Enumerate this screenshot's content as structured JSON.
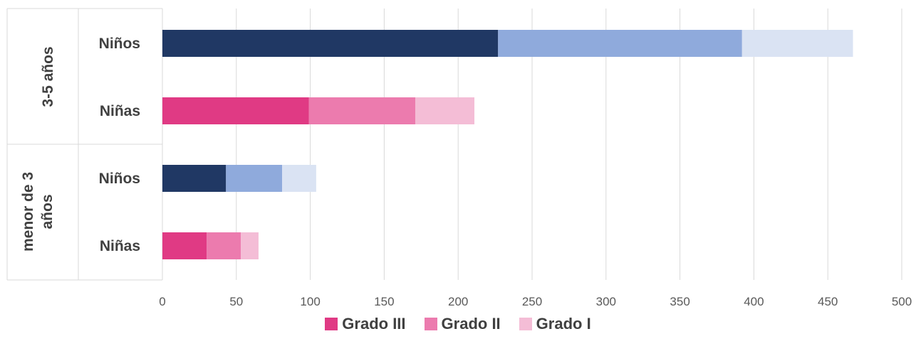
{
  "chart_data": {
    "type": "bar",
    "orientation": "horizontal",
    "stacked": true,
    "groups": [
      {
        "label": "3-5 años",
        "categories": [
          "Niños",
          "Niñas"
        ]
      },
      {
        "label": "menor de 3 años",
        "label_lines": [
          "menor de 3",
          "años"
        ],
        "categories": [
          "Niños",
          "Niñas"
        ]
      }
    ],
    "categories": [
      "3-5 años / Niños",
      "3-5 años / Niñas",
      "menor de 3 años / Niños",
      "menor de 3 años / Niñas"
    ],
    "category_labels": [
      "Niños",
      "Niñas",
      "Niños",
      "Niñas"
    ],
    "series": [
      {
        "name": "Grado III",
        "values": [
          227,
          99,
          43,
          30
        ]
      },
      {
        "name": "Grado II",
        "values": [
          165,
          72,
          38,
          23
        ]
      },
      {
        "name": "Grado I",
        "values": [
          75,
          40,
          23,
          12
        ]
      }
    ],
    "bar_colors": [
      [
        "#203864",
        "#8FAADC",
        "#DAE3F3"
      ],
      [
        "#E03A84",
        "#EC7BAE",
        "#F4BDD6"
      ],
      [
        "#203864",
        "#8FAADC",
        "#DAE3F3"
      ],
      [
        "#E03A84",
        "#EC7BAE",
        "#F4BDD6"
      ]
    ],
    "legend_colors": [
      "#E03A84",
      "#EC7BAE",
      "#F4BDD6"
    ],
    "xlim": [
      0,
      500
    ],
    "xticks": [
      0,
      50,
      100,
      150,
      200,
      250,
      300,
      350,
      400,
      450,
      500
    ],
    "grid": true,
    "legend_position": "bottom"
  }
}
